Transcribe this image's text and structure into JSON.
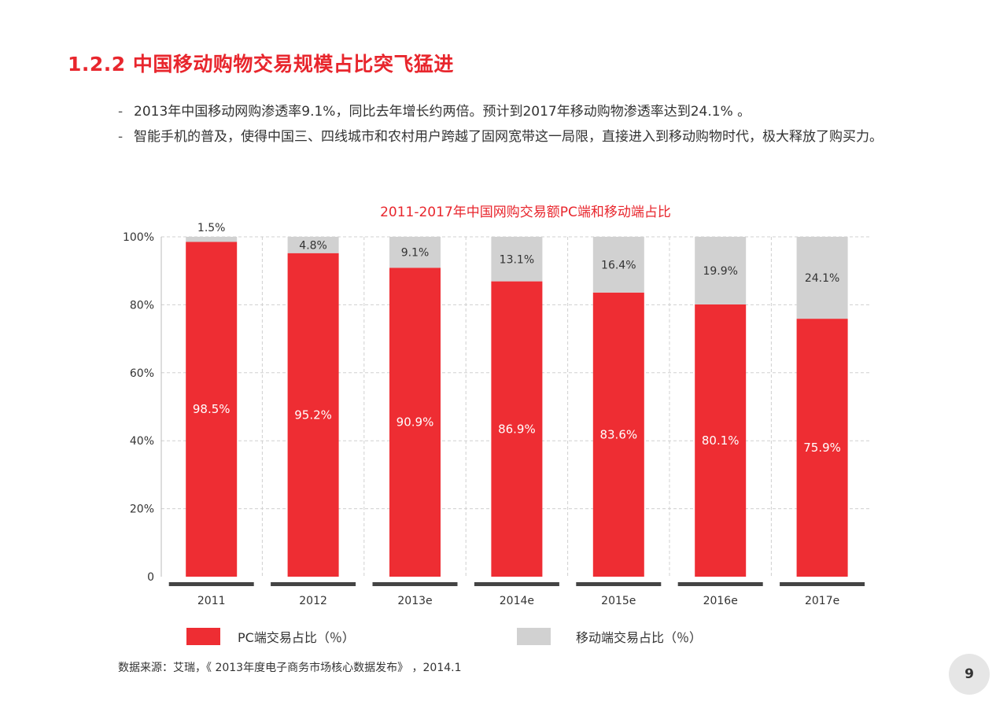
{
  "slide": {
    "heading": "1.2.2 中国移动购物交易规模占比突飞猛进",
    "bullets": [
      "2013年中国移动网购渗透率9.1%，同比去年增长约两倍。预计到2017年移动购物渗透率达到24.1% 。",
      "智能手机的普及，使得中国三、四线城市和农村用户跨越了固网宽带这一局限，直接进入到移动购物时代，极大释放了购买力。"
    ],
    "source": "数据来源：艾瑞，《 2013年度电子商务市场核心数据发布》 ，2014.1",
    "page_number": "9"
  },
  "chart_data": {
    "type": "bar",
    "stacked": true,
    "title": "2011-2017年中国网购交易额PC端和移动端占比",
    "xlabel": "",
    "ylabel": "",
    "categories": [
      "2011",
      "2012",
      "2013e",
      "2014e",
      "2015e",
      "2016e",
      "2017e"
    ],
    "series": [
      {
        "name": "PC端交易占比（％）",
        "color": "#ee2d33",
        "values": [
          98.5,
          95.2,
          90.9,
          86.9,
          83.6,
          80.1,
          75.9
        ],
        "labels": [
          "98.5%",
          "95.2%",
          "90.9%",
          "86.9%",
          "83.6%",
          "80.1%",
          "75.9%"
        ]
      },
      {
        "name": "移动端交易占比（％）",
        "color": "#d1d1d1",
        "values": [
          1.5,
          4.8,
          9.1,
          13.1,
          16.4,
          19.9,
          24.1
        ],
        "labels": [
          "1.5%",
          "4.8%",
          "9.1%",
          "13.1%",
          "16.4%",
          "19.9%",
          "24.1%"
        ]
      }
    ],
    "ylim": [
      0,
      100
    ],
    "yticks": [
      0,
      20,
      40,
      60,
      80,
      100
    ],
    "ytick_labels": [
      "0",
      "20%",
      "40%",
      "60%",
      "80%",
      "100%"
    ],
    "grid": true,
    "legend_position": "bottom"
  }
}
